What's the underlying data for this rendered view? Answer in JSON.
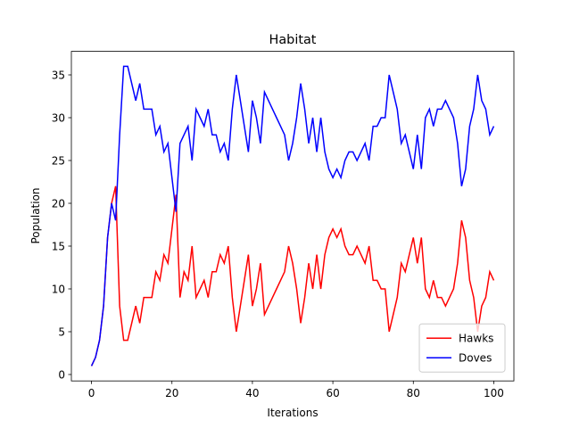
{
  "chart_data": {
    "type": "line",
    "title": "Habitat",
    "x_label": "Iterations",
    "y_label": "Population",
    "x": [
      0,
      1,
      2,
      3,
      4,
      5,
      6,
      7,
      8,
      9,
      10,
      11,
      12,
      13,
      14,
      15,
      16,
      17,
      18,
      19,
      20,
      21,
      22,
      23,
      24,
      25,
      26,
      27,
      28,
      29,
      30,
      31,
      32,
      33,
      34,
      35,
      36,
      37,
      38,
      39,
      40,
      41,
      42,
      43,
      44,
      45,
      46,
      47,
      48,
      49,
      50,
      51,
      52,
      53,
      54,
      55,
      56,
      57,
      58,
      59,
      60,
      61,
      62,
      63,
      64,
      65,
      66,
      67,
      68,
      69,
      70,
      71,
      72,
      73,
      74,
      75,
      76,
      77,
      78,
      79,
      80,
      81,
      82,
      83,
      84,
      85,
      86,
      87,
      88,
      89,
      90,
      91,
      92,
      93,
      94,
      95,
      96,
      97,
      98,
      99,
      100
    ],
    "series": [
      {
        "name": "Hawks",
        "color": "#ff0000",
        "values": [
          1,
          2,
          4,
          8,
          16,
          20,
          22,
          8,
          4,
          4,
          6,
          8,
          6,
          9,
          9,
          9,
          12,
          11,
          14,
          13,
          17,
          21,
          9,
          12,
          11,
          15,
          9,
          10,
          11,
          9,
          12,
          12,
          14,
          13,
          15,
          9,
          5,
          8,
          11,
          14,
          8,
          10,
          13,
          7,
          8,
          9,
          10,
          11,
          12,
          15,
          13,
          10,
          6,
          9,
          13,
          10,
          14,
          10,
          14,
          16,
          17,
          16,
          17,
          15,
          14,
          14,
          15,
          14,
          13,
          15,
          11,
          11,
          10,
          10,
          5,
          7,
          9,
          13,
          12,
          14,
          16,
          13,
          16,
          10,
          9,
          11,
          9,
          9,
          8,
          9,
          10,
          13,
          18,
          16,
          11,
          9,
          5,
          8,
          9,
          12,
          11
        ]
      },
      {
        "name": "Doves",
        "color": "#0000ff",
        "values": [
          1,
          2,
          4,
          8,
          16,
          20,
          18,
          28,
          36,
          36,
          34,
          32,
          34,
          31,
          31,
          31,
          28,
          29,
          26,
          27,
          23,
          19,
          27,
          28,
          29,
          25,
          31,
          30,
          29,
          31,
          28,
          28,
          26,
          27,
          25,
          31,
          35,
          32,
          29,
          26,
          32,
          30,
          27,
          33,
          32,
          31,
          30,
          29,
          28,
          25,
          27,
          30,
          34,
          31,
          27,
          30,
          26,
          30,
          26,
          24,
          23,
          24,
          23,
          25,
          26,
          26,
          25,
          26,
          27,
          25,
          29,
          29,
          30,
          30,
          35,
          33,
          31,
          27,
          28,
          26,
          24,
          28,
          24,
          30,
          31,
          29,
          31,
          31,
          32,
          31,
          30,
          27,
          22,
          24,
          29,
          31,
          35,
          32,
          31,
          28,
          29
        ]
      }
    ],
    "xlim": [
      -5,
      105
    ],
    "xticks": [
      0,
      20,
      40,
      60,
      80,
      100
    ],
    "ylim": [
      -0.75,
      37.75
    ],
    "yticks": [
      0,
      5,
      10,
      15,
      20,
      25,
      30,
      35
    ],
    "legend": "lower right"
  }
}
